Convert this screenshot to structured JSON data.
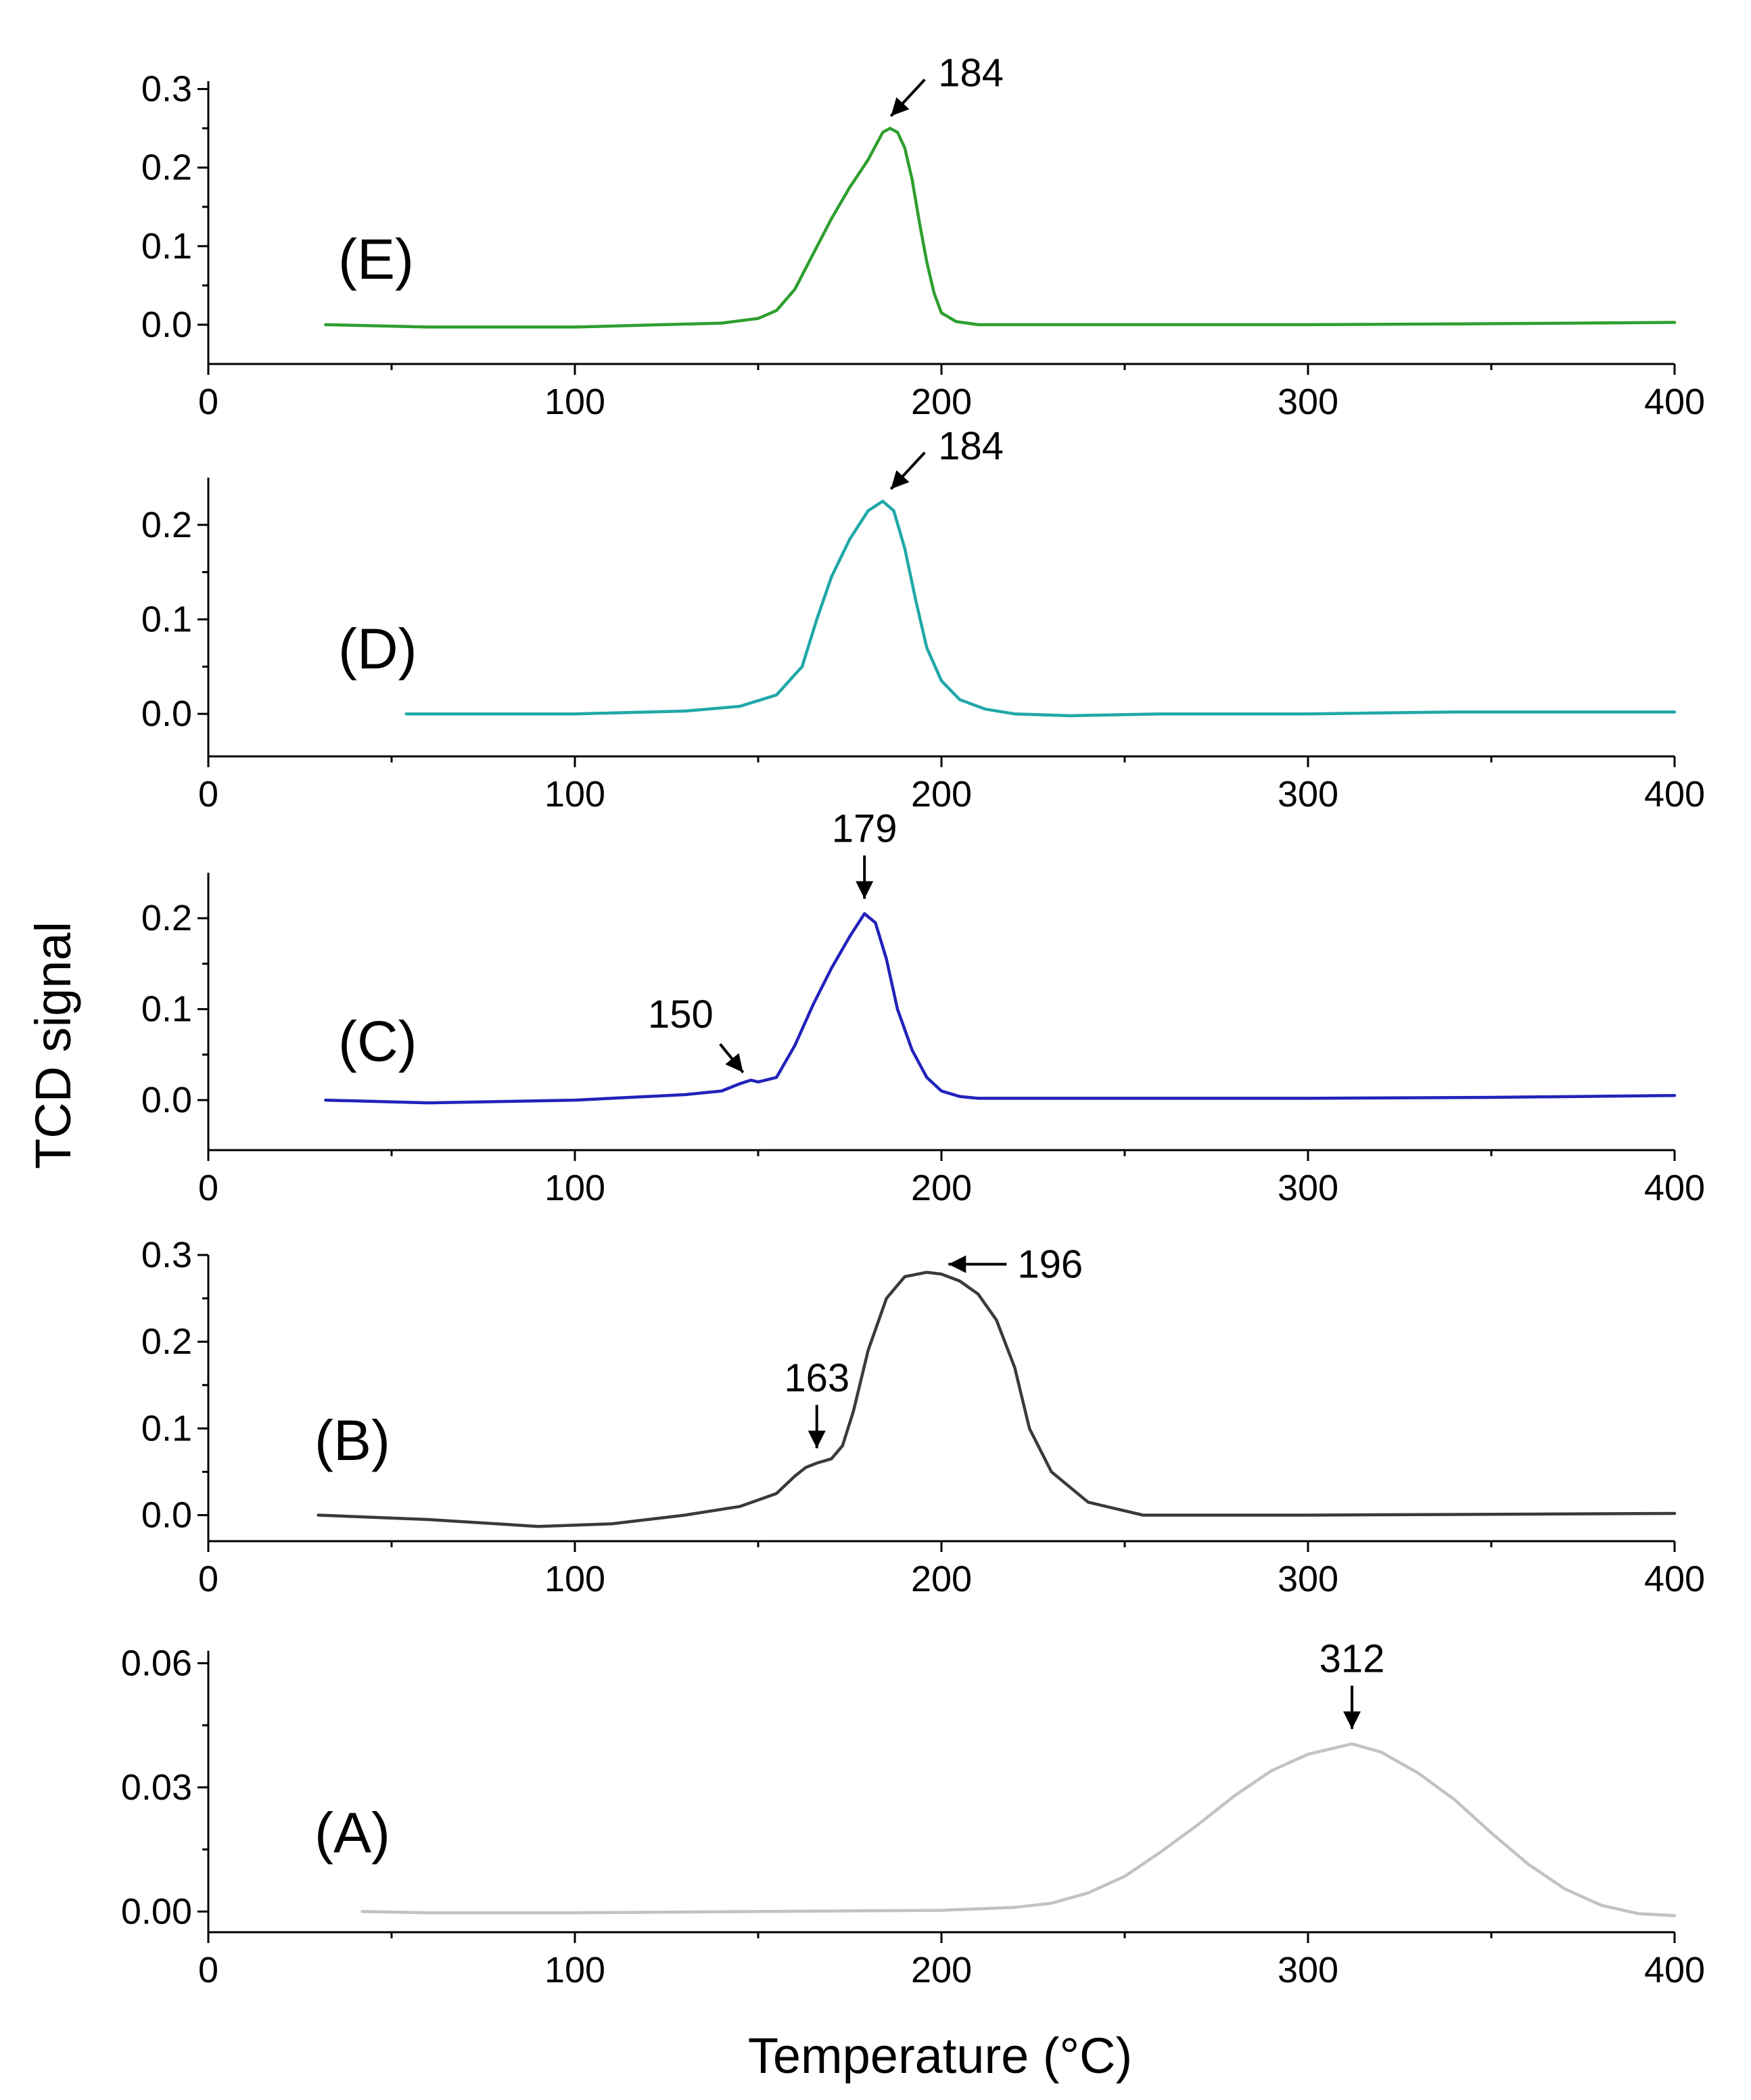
{
  "figure": {
    "xlabel": "Temperature (°C)",
    "ylabel": "TCD signal"
  },
  "chart_data": [
    {
      "type": "line",
      "panel": "(E)",
      "color": "#2e9e2e",
      "xlim": [
        0,
        400
      ],
      "ylim": [
        -0.05,
        0.31
      ],
      "xticks": [
        "0",
        "100",
        "200",
        "300",
        "400"
      ],
      "yticks": [
        {
          "value": 0.0,
          "label": "0.0"
        },
        {
          "value": 0.1,
          "label": "0.1"
        },
        {
          "value": 0.2,
          "label": "0.2"
        },
        {
          "value": 0.3,
          "label": "0.3"
        }
      ],
      "x": [
        32,
        60,
        100,
        140,
        150,
        155,
        160,
        165,
        170,
        175,
        180,
        184,
        186,
        188,
        190,
        192,
        194,
        196,
        198,
        200,
        204,
        210,
        250,
        300,
        340,
        400
      ],
      "y": [
        0.0,
        -0.003,
        -0.003,
        0.002,
        0.008,
        0.018,
        0.045,
        0.09,
        0.135,
        0.175,
        0.21,
        0.245,
        0.25,
        0.245,
        0.225,
        0.185,
        0.13,
        0.08,
        0.04,
        0.015,
        0.004,
        0.0,
        0.0,
        0.0,
        0.001,
        0.003
      ],
      "annotations": [
        {
          "text": "184",
          "x": 184,
          "y": 0.25,
          "arrow": "upper-right"
        }
      ]
    },
    {
      "type": "line",
      "panel": "(D)",
      "color": "#20a8a8",
      "xlim": [
        0,
        400
      ],
      "ylim": [
        -0.045,
        0.25
      ],
      "xticks": [
        "0",
        "100",
        "200",
        "300",
        "400"
      ],
      "yticks": [
        {
          "value": 0.0,
          "label": "0.0"
        },
        {
          "value": 0.1,
          "label": "0.1"
        },
        {
          "value": 0.2,
          "label": "0.2"
        }
      ],
      "x": [
        54,
        100,
        130,
        145,
        155,
        162,
        166,
        170,
        175,
        180,
        184,
        187,
        190,
        193,
        196,
        200,
        205,
        212,
        220,
        235,
        260,
        300,
        340,
        400
      ],
      "y": [
        0.0,
        0.0,
        0.003,
        0.008,
        0.02,
        0.05,
        0.1,
        0.145,
        0.185,
        0.215,
        0.225,
        0.215,
        0.175,
        0.12,
        0.07,
        0.035,
        0.015,
        0.005,
        0.0,
        -0.002,
        0.0,
        0.0,
        0.002,
        0.002
      ],
      "annotations": [
        {
          "text": "184",
          "x": 184,
          "y": 0.225,
          "arrow": "upper-right"
        }
      ]
    },
    {
      "type": "line",
      "panel": "(C)",
      "color": "#2222bb",
      "xlim": [
        0,
        400
      ],
      "ylim": [
        -0.055,
        0.25
      ],
      "xticks": [
        "0",
        "100",
        "200",
        "300",
        "400"
      ],
      "yticks": [
        {
          "value": 0.0,
          "label": "0.0"
        },
        {
          "value": 0.1,
          "label": "0.1"
        },
        {
          "value": 0.2,
          "label": "0.2"
        }
      ],
      "x": [
        32,
        60,
        100,
        130,
        140,
        145,
        148,
        150,
        155,
        160,
        165,
        170,
        175,
        179,
        182,
        185,
        188,
        192,
        196,
        200,
        205,
        210,
        250,
        300,
        350,
        400
      ],
      "y": [
        0.0,
        -0.003,
        0.0,
        0.006,
        0.01,
        0.018,
        0.022,
        0.02,
        0.025,
        0.06,
        0.105,
        0.145,
        0.18,
        0.205,
        0.195,
        0.155,
        0.1,
        0.055,
        0.025,
        0.01,
        0.004,
        0.002,
        0.002,
        0.002,
        0.003,
        0.005
      ],
      "annotations": [
        {
          "text": "179",
          "x": 179,
          "y": 0.205,
          "arrow": "down"
        },
        {
          "text": "150",
          "x": 147,
          "y": 0.02,
          "arrow": "lower-right"
        }
      ]
    },
    {
      "type": "line",
      "panel": "(B)",
      "color": "#3a3a3a",
      "xlim": [
        0,
        400
      ],
      "ylim": [
        -0.03,
        0.3
      ],
      "xticks": [
        "0",
        "100",
        "200",
        "300",
        "400"
      ],
      "yticks": [
        {
          "value": 0.0,
          "label": "0.0"
        },
        {
          "value": 0.1,
          "label": "0.1"
        },
        {
          "value": 0.2,
          "label": "0.2"
        },
        {
          "value": 0.3,
          "label": "0.3"
        }
      ],
      "x": [
        30,
        60,
        90,
        110,
        130,
        145,
        155,
        160,
        163,
        166,
        170,
        173,
        176,
        180,
        185,
        190,
        196,
        200,
        205,
        210,
        215,
        220,
        224,
        230,
        240,
        255,
        300,
        400
      ],
      "y": [
        0.0,
        -0.005,
        -0.013,
        -0.01,
        0.0,
        0.01,
        0.025,
        0.045,
        0.055,
        0.06,
        0.065,
        0.08,
        0.12,
        0.19,
        0.25,
        0.275,
        0.28,
        0.278,
        0.27,
        0.255,
        0.225,
        0.17,
        0.1,
        0.05,
        0.015,
        0.0,
        0.0,
        0.002
      ],
      "annotations": [
        {
          "text": "196",
          "x": 196,
          "y": 0.28,
          "arrow": "left"
        },
        {
          "text": "163",
          "x": 166,
          "y": 0.06,
          "arrow": "down"
        }
      ]
    },
    {
      "type": "line",
      "panel": "(A)",
      "color": "#c2c2c2",
      "xlim": [
        0,
        400
      ],
      "ylim": [
        -0.005,
        0.063
      ],
      "xticks": [
        "0",
        "100",
        "200",
        "300",
        "400"
      ],
      "yticks": [
        {
          "value": 0.0,
          "label": "0.00"
        },
        {
          "value": 0.03,
          "label": "0.03"
        },
        {
          "value": 0.06,
          "label": "0.06"
        }
      ],
      "x": [
        42,
        60,
        100,
        150,
        200,
        220,
        230,
        240,
        250,
        260,
        270,
        280,
        290,
        300,
        312,
        320,
        330,
        340,
        350,
        360,
        370,
        380,
        390,
        400
      ],
      "y": [
        0.0,
        -0.0003,
        -0.0003,
        0.0,
        0.0003,
        0.001,
        0.002,
        0.0045,
        0.0085,
        0.0145,
        0.021,
        0.028,
        0.034,
        0.038,
        0.0405,
        0.0385,
        0.0335,
        0.027,
        0.019,
        0.0115,
        0.0055,
        0.0015,
        -0.0005,
        -0.001
      ],
      "annotations": [
        {
          "text": "312",
          "x": 312,
          "y": 0.0405,
          "arrow": "down"
        }
      ]
    }
  ]
}
